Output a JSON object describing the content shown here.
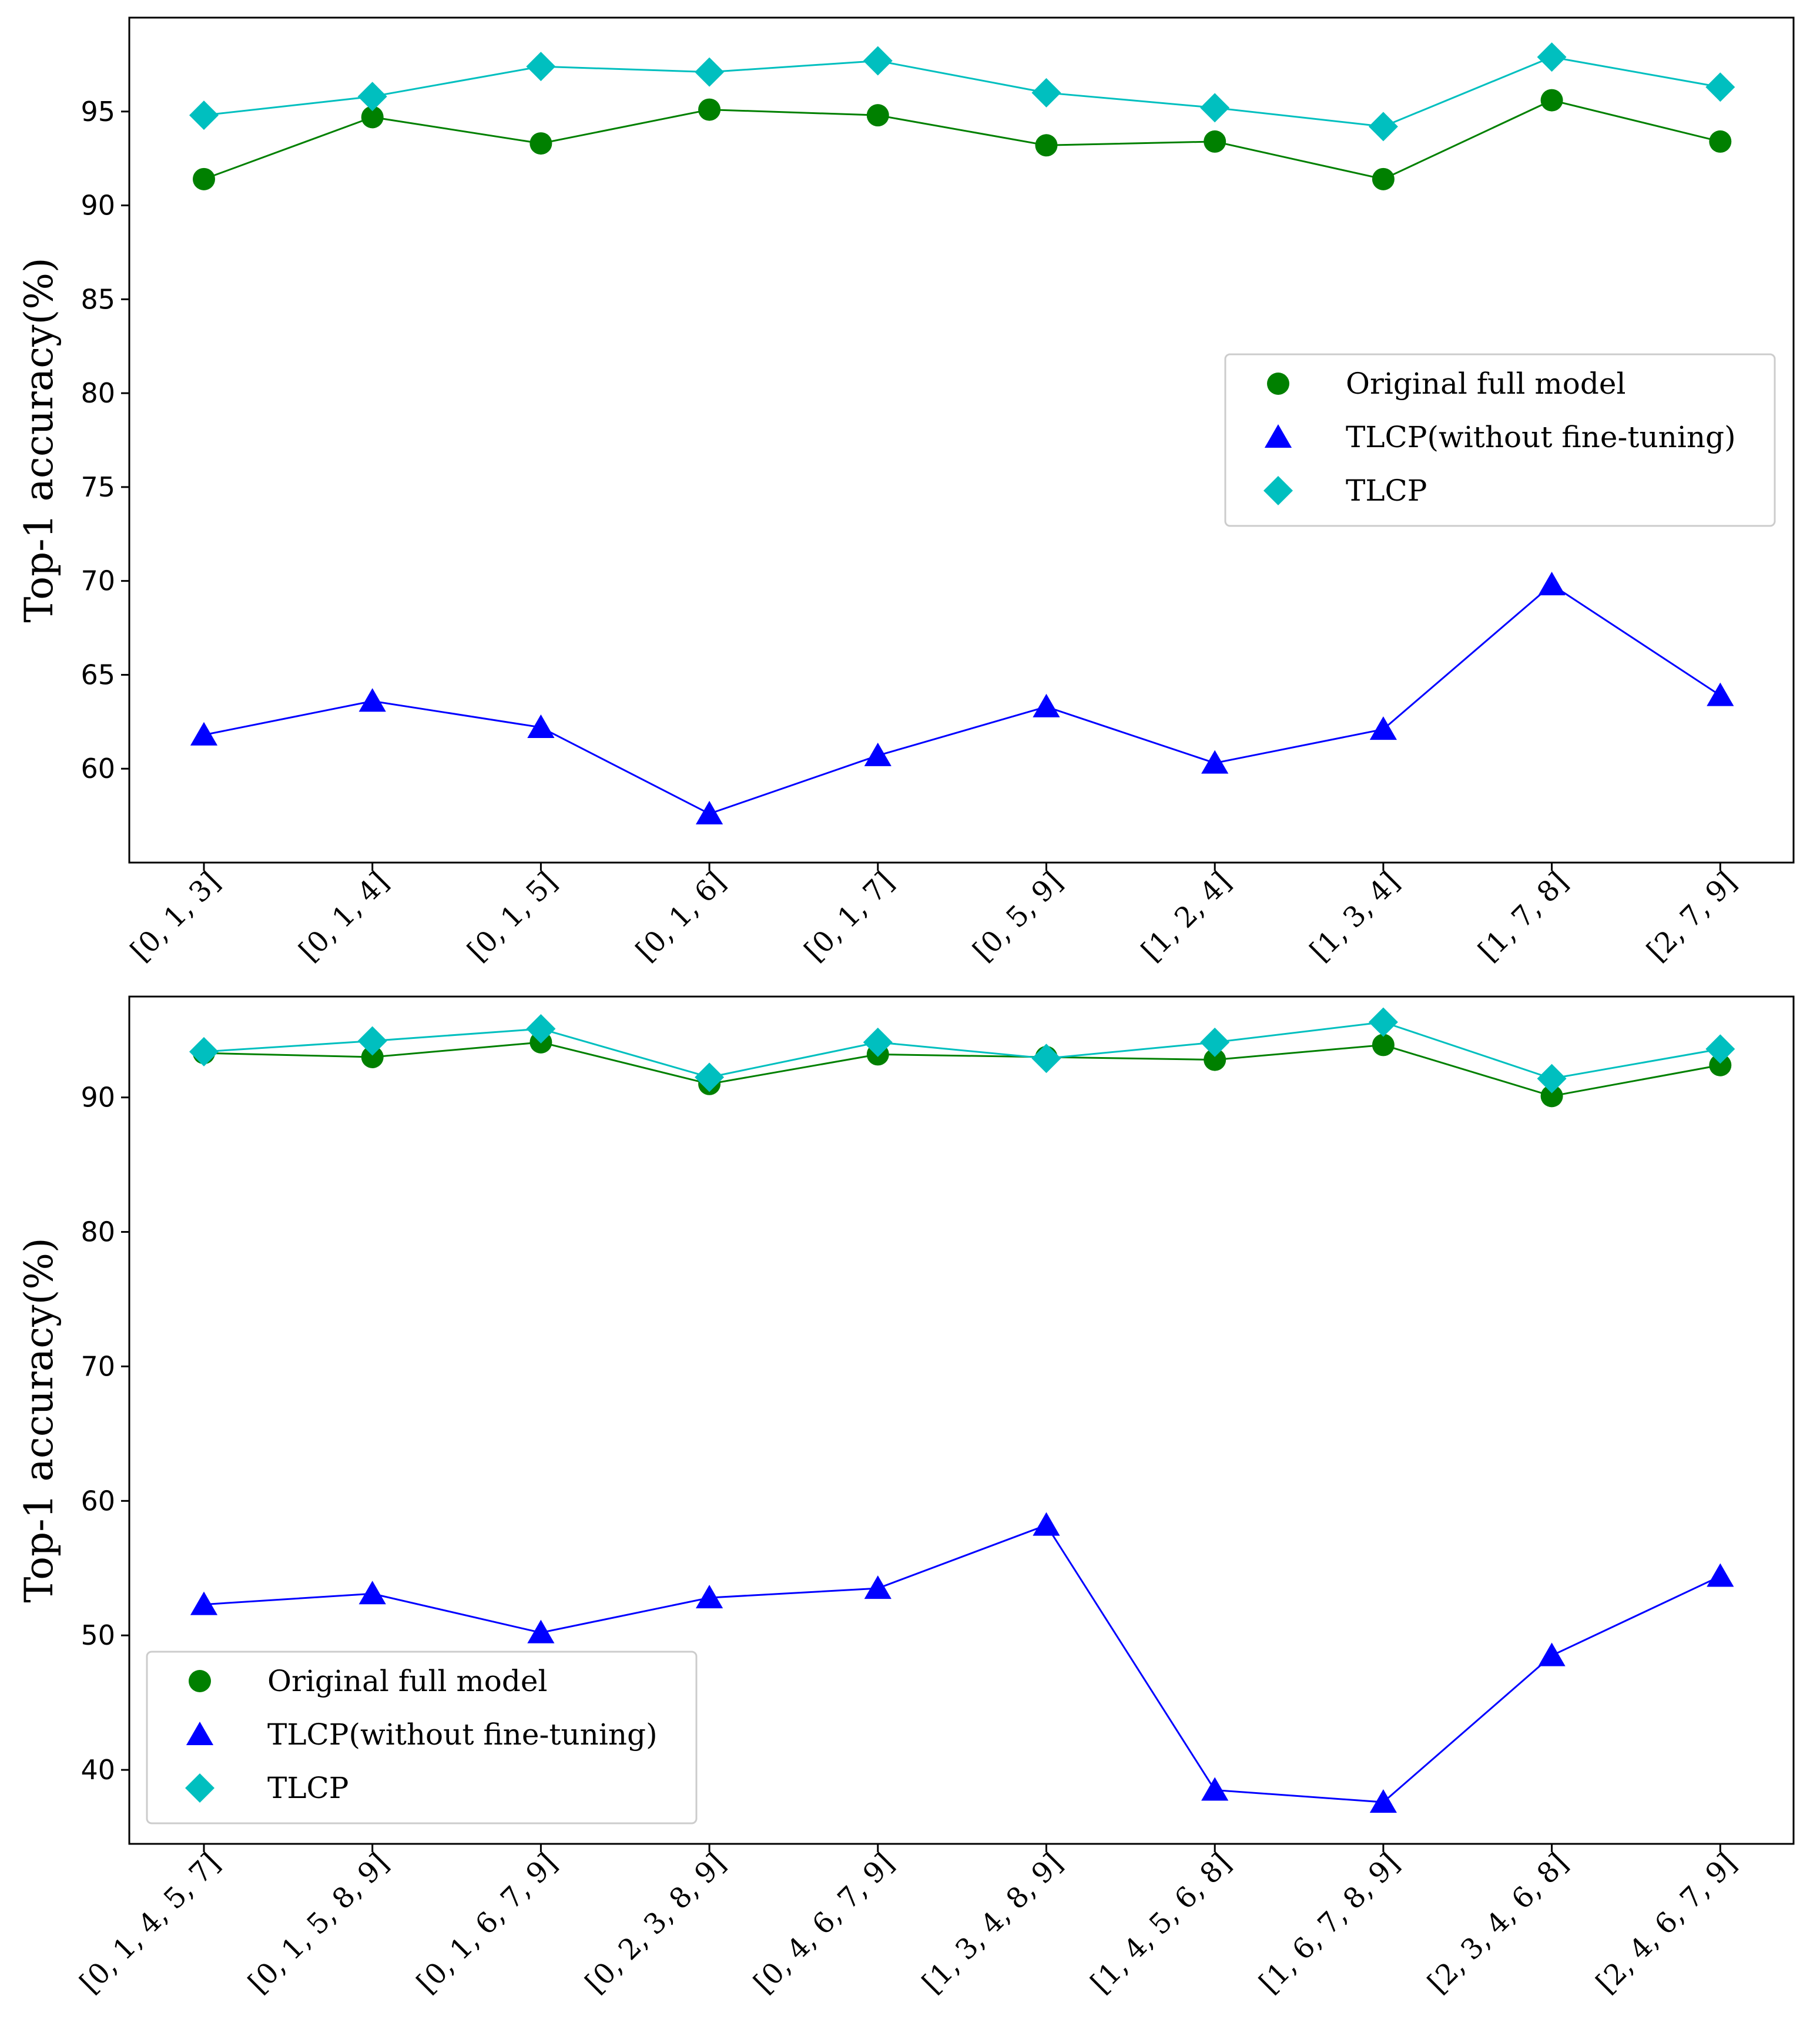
{
  "chart_data": [
    {
      "type": "line",
      "title": "",
      "xlabel": "",
      "ylabel": "Top-1 accuracy(%)",
      "categories": [
        "[0, 1, 3]",
        "[0, 1, 4]",
        "[0, 1, 5]",
        "[0, 1, 6]",
        "[0, 1, 7]",
        "[0, 5, 9]",
        "[1, 2, 4]",
        "[1, 3, 4]",
        "[1, 7, 8]",
        "[2, 7, 9]"
      ],
      "ylim": [
        55,
        100
      ],
      "yticks": [
        60,
        65,
        70,
        75,
        80,
        85,
        90,
        95
      ],
      "legend_position": "center-right",
      "series": [
        {
          "name": "Original full model",
          "marker": "circle",
          "color": "#008000",
          "values": [
            91.4,
            94.7,
            93.3,
            95.1,
            94.8,
            93.2,
            93.4,
            91.4,
            95.6,
            93.4
          ]
        },
        {
          "name": "TLCP(without fine-tuning)",
          "marker": "triangle",
          "color": "#0000ff",
          "values": [
            61.8,
            63.6,
            62.2,
            57.6,
            60.7,
            63.3,
            60.3,
            62.1,
            69.8,
            63.9
          ]
        },
        {
          "name": "TLCP",
          "marker": "diamond",
          "color": "#00bfbf",
          "values": [
            94.8,
            95.8,
            97.4,
            97.1,
            97.7,
            96.0,
            95.2,
            94.2,
            97.9,
            96.3
          ]
        }
      ]
    },
    {
      "type": "line",
      "title": "",
      "xlabel": "",
      "ylabel": "Top-1 accuracy(%)",
      "categories": [
        "[0, 1, 4, 5, 7]",
        "[0, 1, 5, 8, 9]",
        "[0, 1, 6, 7, 9]",
        "[0, 2, 3, 8, 9]",
        "[0, 4, 6, 7, 9]",
        "[1, 3, 4, 8, 9]",
        "[1, 4, 5, 6, 8]",
        "[1, 6, 7, 8, 9]",
        "[2, 3, 4, 6, 8]",
        "[2, 4, 6, 7, 9]"
      ],
      "ylim": [
        34.5,
        97.5
      ],
      "yticks": [
        40,
        50,
        60,
        70,
        80,
        90
      ],
      "legend_position": "lower-left",
      "series": [
        {
          "name": "Original full model",
          "marker": "circle",
          "color": "#008000",
          "values": [
            93.3,
            93.0,
            94.1,
            91.0,
            93.2,
            93.0,
            92.8,
            93.9,
            90.1,
            92.4
          ]
        },
        {
          "name": "TLCP(without fine-tuning)",
          "marker": "triangle",
          "color": "#0000ff",
          "values": [
            52.3,
            53.1,
            50.2,
            52.8,
            53.5,
            58.2,
            38.5,
            37.6,
            48.5,
            54.4
          ]
        },
        {
          "name": "TLCP",
          "marker": "diamond",
          "color": "#00bfbf",
          "values": [
            93.4,
            94.2,
            95.1,
            91.5,
            94.1,
            92.9,
            94.1,
            95.6,
            91.4,
            93.6
          ]
        }
      ]
    }
  ]
}
